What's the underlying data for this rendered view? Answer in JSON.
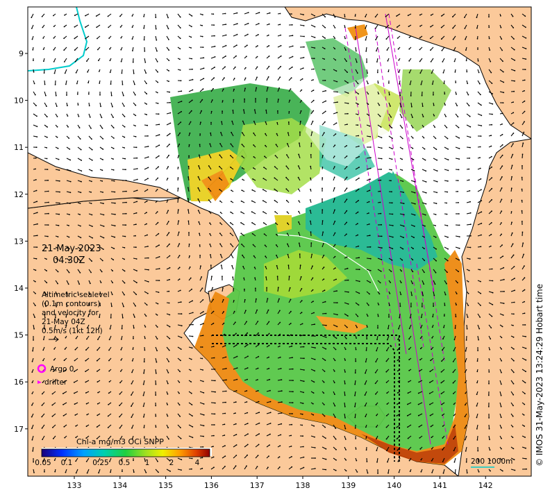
{
  "map": {
    "date": "21-May-2023",
    "time": "04:30Z",
    "altimetry_lines": [
      "Altimetric sealevel",
      "(0.1m contours)",
      "and velocity for",
      "21-May 04Z",
      "0.5m/s (1kt 12h)"
    ],
    "argo_label": "Argo 0",
    "drifter_label": "drifter",
    "credit": "© IMOS 31-May-2023 13:24:29 Hobart time",
    "scale_label": "200  1000m",
    "colorbar_title": "Chl-a mg/m3 OCi SNPP",
    "colorbar_ticks": [
      "0.05",
      "0.1",
      "0.25",
      "0.5",
      "1",
      "2",
      "4"
    ],
    "lat_ticks": [
      "9",
      "10",
      "11",
      "12",
      "13",
      "14",
      "15",
      "16",
      "17"
    ],
    "lon_ticks": [
      "133",
      "134",
      "135",
      "136",
      "137",
      "138",
      "139",
      "140",
      "141",
      "142"
    ],
    "colors": {
      "land": "#fbc99a",
      "ocean": "#ffffff",
      "argo": "#ff00ff",
      "track": "#cc00cc",
      "bathy": "#00cccc"
    }
  }
}
